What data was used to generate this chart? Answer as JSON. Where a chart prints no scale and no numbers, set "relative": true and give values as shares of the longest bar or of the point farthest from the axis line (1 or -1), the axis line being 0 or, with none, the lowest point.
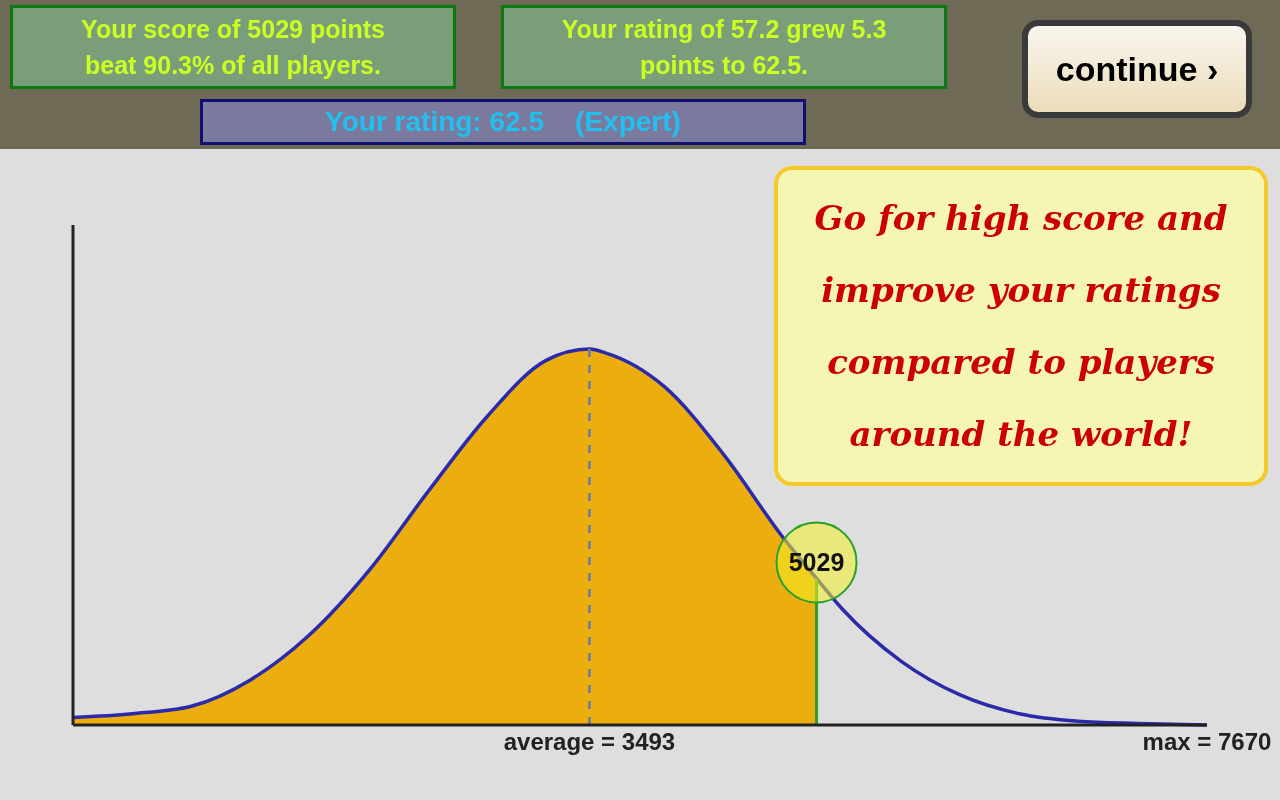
{
  "chart_data": {
    "type": "area",
    "relative": true,
    "annotations": [
      "Your score of 5029 points beat 90.3% of all players.",
      "Your rating of 57.2 grew 5.3 points to 62.5.",
      "Your rating: 62.5    (Expert)",
      "continue ›",
      "Go for high score and improve your ratings compared to players around the world!"
    ],
    "xlim": [
      0,
      7670
    ],
    "xticks": [
      {
        "value": 3493,
        "label": "average = 3493"
      },
      {
        "value": 7670,
        "label": "max = 7670"
      }
    ],
    "series": [
      {
        "color": "#ecae0e",
        "x": [
          0,
          400,
          800,
          1200,
          1600,
          2000,
          2400,
          2800,
          3200,
          3493,
          3600,
          4000,
          4400,
          4800,
          5029
        ],
        "values": [
          0.02,
          0.03,
          0.05,
          0.12,
          0.24,
          0.41,
          0.62,
          0.82,
          0.97,
          1,
          0.99,
          0.9,
          0.72,
          0.5,
          0.39
        ]
      },
      {
        "type": "line",
        "color": "#2a2aaa",
        "x": [
          0,
          400,
          800,
          1200,
          1600,
          2000,
          2400,
          2800,
          3200,
          3493,
          3600,
          4000,
          4400,
          4800,
          5029,
          5200,
          5600,
          6000,
          6400,
          6800,
          7200,
          7670
        ],
        "values": [
          0.02,
          0.03,
          0.05,
          0.12,
          0.24,
          0.41,
          0.62,
          0.82,
          0.97,
          1,
          0.99,
          0.9,
          0.72,
          0.5,
          0.39,
          0.31,
          0.17,
          0.08,
          0.03,
          0.01,
          0.004,
          0
        ]
      }
    ],
    "ref_lines": [
      {
        "axis": "x",
        "value": 3493,
        "color": "#7a7f8a",
        "line_style": "dashed"
      },
      {
        "axis": "x",
        "value": 5029,
        "color": "#2aa02a",
        "label": "5029"
      }
    ],
    "marker": "none",
    "legend": false,
    "grid": false
  }
}
